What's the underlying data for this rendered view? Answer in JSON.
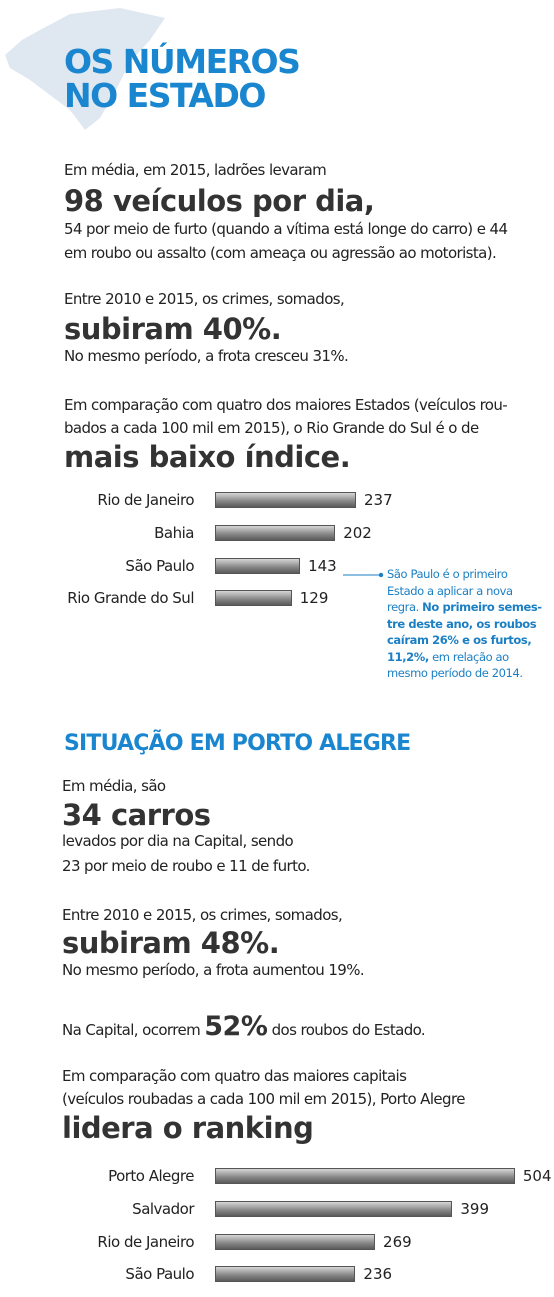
{
  "state": {
    "title": [
      "OS NÚMEROS",
      "NO ESTADO"
    ],
    "p1": [
      "Em média, em 2015, ladrões levaram",
      "98 veículos por dia,",
      "54 por meio de furto (quando a vítima está longe do carro) e 44",
      "em roubo ou assalto (com  ameaça ou agressão ao motorista)."
    ],
    "p2": [
      "Entre 2010 e 2015, os crimes, somados,",
      "subiram 40%.",
      "No mesmo período, a frota cresceu 31%."
    ],
    "p3": [
      "Em comparação com quatro dos maiores Estados (veículos rou-",
      "bados a cada 100 mil em 2015), o Rio Grande do Sul é o de",
      "mais baixo índice."
    ],
    "note": [
      [
        {
          "text": "São Paulo é o primeiro",
          "bold": false
        }
      ],
      [
        {
          "text": "Estado a aplicar a nova",
          "bold": false
        }
      ],
      [
        {
          "text": "regra. ",
          "bold": false
        },
        {
          "text": "No primeiro semes-",
          "bold": true
        }
      ],
      [
        {
          "text": "tre deste ano, os roubos",
          "bold": true
        }
      ],
      [
        {
          "text": "caíram 26% e os furtos,",
          "bold": true
        }
      ],
      [
        {
          "text": "11,2%,",
          "bold": true
        },
        {
          "text": " em relação ao",
          "bold": false
        }
      ],
      [
        {
          "text": "mesmo período de 2014.",
          "bold": false
        }
      ]
    ]
  },
  "capital": {
    "title": "SITUAÇÃO EM PORTO ALEGRE",
    "p1": [
      "Em média, são",
      "34 carros",
      "levados por dia na Capital,  sendo",
      "23 por meio de roubo e 11 de furto."
    ],
    "p2": [
      "Entre 2010 e 2015, os crimes, somados,",
      "subiram 48%.",
      "No mesmo período, a frota aumentou 19%."
    ],
    "p3": [
      "Na Capital, ocorrem ",
      "52%",
      " dos roubos do Estado."
    ],
    "p4": [
      "Em comparação com quatro das maiores capitais",
      "(veículos roubadas a cada 100 mil em 2015), Porto Alegre",
      "lidera o ranking"
    ]
  },
  "chart_data": [
    {
      "type": "bar",
      "categories": [
        "Rio de Janeiro",
        "Bahia",
        "São Paulo",
        "Rio Grande do Sul"
      ],
      "values": [
        237,
        202,
        143,
        129
      ],
      "color": "#8a8a8a"
    },
    {
      "type": "bar",
      "categories": [
        "Porto Alegre",
        "Salvador",
        "Rio de Janeiro",
        "São Paulo"
      ],
      "values": [
        504,
        399,
        269,
        236
      ],
      "color": "#8a8a8a"
    }
  ]
}
